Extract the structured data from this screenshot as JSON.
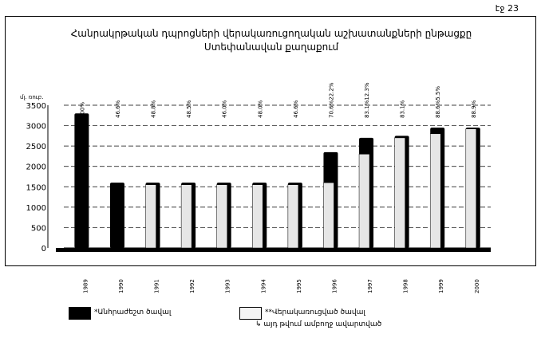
{
  "page_number": "էջ 23",
  "chart_data": {
    "type": "bar",
    "title": "Հանրակրթական դպրոցների վերակառուցողական աշխատանքների ընթացքը Ստեփանավան քաղաքում",
    "ylabel": "մլ. ռուբ.",
    "ylim": [
      0,
      3500
    ],
    "yticks": [
      0,
      500,
      1000,
      1500,
      2000,
      2500,
      3000,
      3500
    ],
    "grid": true,
    "categories": [
      "1989",
      "1990",
      "1991",
      "1992",
      "1993",
      "1994",
      "1995",
      "1996",
      "1997",
      "1998",
      "1999",
      "2000"
    ],
    "series": [
      {
        "name": "*Անհրաժեշտ ծավալ",
        "color": "#000000",
        "values": [
          3300,
          1600,
          1600,
          1600,
          1600,
          1600,
          1600,
          2350,
          2700,
          2750,
          2950,
          2950
        ]
      },
      {
        "name": "**Վերակառուցված ծավալ",
        "color": "#e8e8e8",
        "values": [
          0,
          0,
          1550,
          1550,
          1550,
          1550,
          1550,
          1600,
          2300,
          2700,
          2800,
          2920
        ]
      }
    ],
    "data_labels": [
      "100%",
      "46.6%",
      "48.8%",
      "48.5%",
      "46.0%",
      "48.0%",
      "46.6%",
      "70.6%22.2%",
      "83.1%12.3%",
      "83.1%",
      "88.6%5.5%",
      "88.9%"
    ],
    "legend": {
      "placement": "bottom",
      "note": "այդ թվում ամբողջ ավարտված"
    }
  }
}
